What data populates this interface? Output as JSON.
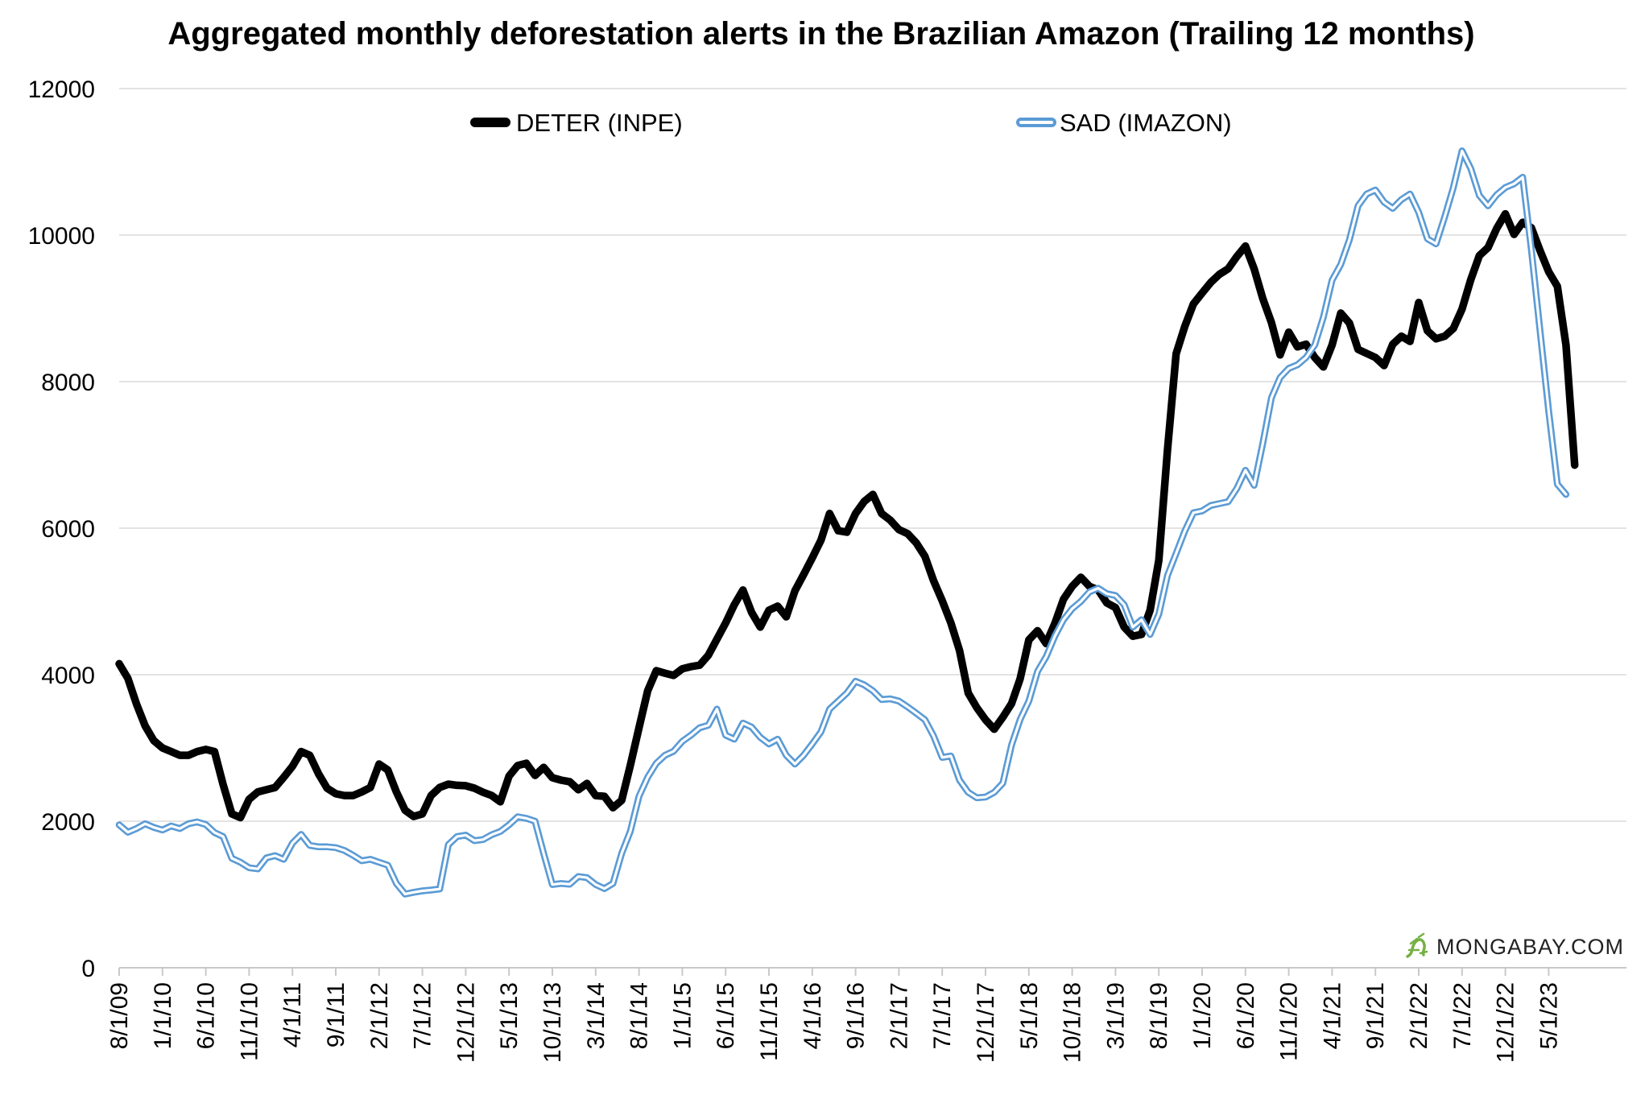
{
  "title": "Aggregated monthly deforestation alerts in the Brazilian Amazon (Trailing 12 months)",
  "watermark": "MONGABAY.COM",
  "colors": {
    "deter": "#000000",
    "sad": "#5B9BD5",
    "sad_core": "#ffffff",
    "grid": "#e3e3e3",
    "axis": "#c9c9c9",
    "watermark_green": "#76b043",
    "background": "#ffffff"
  },
  "chart_data": {
    "type": "line",
    "title": "Aggregated monthly deforestation alerts in the Brazilian Amazon (Trailing 12 months)",
    "xlabel": "",
    "ylabel": "",
    "ylim": [
      0,
      12000
    ],
    "y_ticks": [
      0,
      2000,
      4000,
      6000,
      8000,
      10000,
      12000
    ],
    "grid": "horizontal",
    "legend_position": "top",
    "x_monthly_start": "8/1/09",
    "x_tick_every_months": 5,
    "x_tick_labels": [
      "8/1/09",
      "1/1/10",
      "6/1/10",
      "11/1/10",
      "4/1/11",
      "9/1/11",
      "2/1/12",
      "7/1/12",
      "12/1/12",
      "5/1/13",
      "10/1/13",
      "3/1/14",
      "8/1/14",
      "1/1/15",
      "6/1/15",
      "11/1/15",
      "4/1/16",
      "9/1/16",
      "2/1/17",
      "7/1/17",
      "12/1/17",
      "5/1/18",
      "10/1/18",
      "3/1/19",
      "8/1/19",
      "1/1/20",
      "6/1/20",
      "11/1/20",
      "4/1/21",
      "9/1/21",
      "2/1/22",
      "7/1/22",
      "12/1/22",
      "5/1/23"
    ],
    "series": [
      {
        "name": "DETER (INPE)",
        "color": "#000000",
        "style": "solid",
        "start": "2009-08",
        "values": [
          4150,
          3950,
          3600,
          3300,
          3100,
          3000,
          2950,
          2900,
          2900,
          2950,
          2980,
          2950,
          2500,
          2100,
          2050,
          2300,
          2400,
          2430,
          2460,
          2600,
          2750,
          2950,
          2900,
          2650,
          2450,
          2375,
          2350,
          2350,
          2400,
          2460,
          2780,
          2700,
          2400,
          2150,
          2065,
          2100,
          2350,
          2460,
          2505,
          2490,
          2485,
          2450,
          2395,
          2350,
          2265,
          2615,
          2760,
          2790,
          2625,
          2735,
          2595,
          2560,
          2540,
          2430,
          2515,
          2350,
          2340,
          2185,
          2285,
          2760,
          3275,
          3780,
          4055,
          4020,
          3990,
          4080,
          4110,
          4130,
          4265,
          4485,
          4705,
          4955,
          5155,
          4850,
          4650,
          4880,
          4935,
          4790,
          5145,
          5365,
          5595,
          5835,
          6200,
          5965,
          5945,
          6200,
          6365,
          6460,
          6200,
          6110,
          5980,
          5925,
          5800,
          5615,
          5285,
          5010,
          4705,
          4330,
          3750,
          3550,
          3385,
          3255,
          3420,
          3605,
          3945,
          4475,
          4600,
          4425,
          4700,
          5030,
          5205,
          5330,
          5205,
          5155,
          4980,
          4915,
          4650,
          4525,
          4550,
          4880,
          5560,
          7070,
          8380,
          8755,
          9060,
          9210,
          9355,
          9465,
          9540,
          9705,
          9850,
          9540,
          9135,
          8805,
          8365,
          8675,
          8475,
          8510,
          8330,
          8200,
          8500,
          8935,
          8800,
          8440,
          8385,
          8330,
          8220,
          8510,
          8620,
          8550,
          9080,
          8695,
          8585,
          8620,
          8725,
          8990,
          9390,
          9720,
          9830,
          10090,
          10290,
          10010,
          10175,
          10100,
          9790,
          9500,
          9300,
          8500,
          6860
        ]
      },
      {
        "name": "SAD (IMAZON)",
        "color": "#5B9BD5",
        "style": "double-line",
        "start": "2009-08",
        "values": [
          1950,
          1850,
          1900,
          1965,
          1915,
          1880,
          1935,
          1900,
          1965,
          1990,
          1955,
          1845,
          1790,
          1495,
          1440,
          1365,
          1350,
          1500,
          1530,
          1480,
          1700,
          1820,
          1670,
          1650,
          1650,
          1640,
          1600,
          1535,
          1460,
          1480,
          1440,
          1400,
          1150,
          1005,
          1030,
          1050,
          1060,
          1075,
          1680,
          1790,
          1810,
          1735,
          1750,
          1815,
          1860,
          1950,
          2060,
          2040,
          2000,
          1560,
          1135,
          1150,
          1140,
          1245,
          1230,
          1135,
          1080,
          1150,
          1560,
          1860,
          2340,
          2600,
          2790,
          2900,
          2955,
          3090,
          3175,
          3275,
          3310,
          3530,
          3175,
          3120,
          3340,
          3285,
          3145,
          3055,
          3120,
          2900,
          2780,
          2900,
          3055,
          3220,
          3530,
          3640,
          3750,
          3910,
          3860,
          3780,
          3660,
          3670,
          3640,
          3560,
          3475,
          3385,
          3165,
          2870,
          2890,
          2560,
          2395,
          2320,
          2330,
          2395,
          2520,
          3040,
          3390,
          3640,
          4045,
          4245,
          4525,
          4750,
          4900,
          5000,
          5130,
          5180,
          5105,
          5080,
          4955,
          4650,
          4750,
          4550,
          4825,
          5355,
          5655,
          5960,
          6210,
          6235,
          6310,
          6335,
          6360,
          6540,
          6790,
          6585,
          7155,
          7780,
          8055,
          8180,
          8230,
          8330,
          8500,
          8880,
          9385,
          9600,
          9935,
          10400,
          10560,
          10615,
          10450,
          10365,
          10485,
          10560,
          10310,
          9950,
          9880,
          10250,
          10650,
          11150,
          10910,
          10540,
          10400,
          10550,
          10650,
          10700,
          10790,
          9800,
          8700,
          7600,
          6600,
          6460
        ]
      }
    ]
  }
}
